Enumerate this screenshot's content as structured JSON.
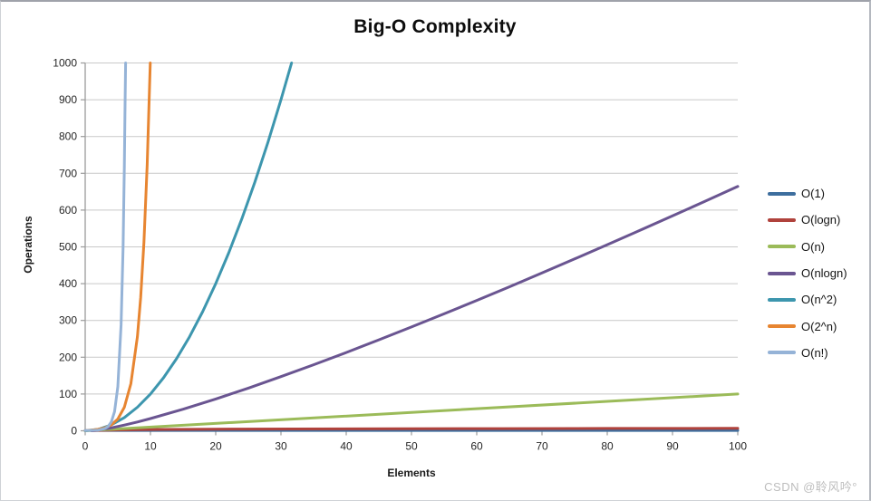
{
  "watermark": "CSDN @聆风吟°",
  "colors": {
    "grid": "#c9c9c9",
    "axis": "#9b9b9b",
    "tick_text": "#262626",
    "title_text": "#0d0d0d",
    "watermark_text": "#bdbdbd"
  },
  "chart_data": {
    "type": "line",
    "title": "Big-O Complexity",
    "xlabel": "Elements",
    "ylabel": "Operations",
    "xlim": [
      0,
      100
    ],
    "ylim": [
      0,
      1000
    ],
    "x_ticks": [
      0,
      10,
      20,
      30,
      40,
      50,
      60,
      70,
      80,
      90,
      100
    ],
    "y_ticks": [
      0,
      100,
      200,
      300,
      400,
      500,
      600,
      700,
      800,
      900,
      1000
    ],
    "grid": "horizontal",
    "legend_position": "right",
    "series": [
      {
        "name": "O(1)",
        "color": "#3d6e9e",
        "points": [
          [
            0,
            1
          ],
          [
            100,
            1
          ]
        ]
      },
      {
        "name": "O(logn)",
        "color": "#b0423c",
        "points": [
          [
            1,
            0
          ],
          [
            2,
            1
          ],
          [
            3,
            1.58
          ],
          [
            4,
            2
          ],
          [
            6,
            2.58
          ],
          [
            8,
            3
          ],
          [
            12,
            3.58
          ],
          [
            16,
            4
          ],
          [
            24,
            4.58
          ],
          [
            32,
            5
          ],
          [
            48,
            5.58
          ],
          [
            64,
            6
          ],
          [
            80,
            6.32
          ],
          [
            100,
            6.64
          ]
        ]
      },
      {
        "name": "O(n)",
        "color": "#9bbb59",
        "points": [
          [
            0,
            0
          ],
          [
            100,
            100
          ]
        ]
      },
      {
        "name": "O(nlogn)",
        "color": "#6a5591",
        "points": [
          [
            1,
            0
          ],
          [
            2,
            2
          ],
          [
            4,
            8
          ],
          [
            6,
            15.5
          ],
          [
            8,
            24
          ],
          [
            10,
            33.2
          ],
          [
            15,
            58.6
          ],
          [
            20,
            86.4
          ],
          [
            25,
            116.1
          ],
          [
            30,
            147.2
          ],
          [
            35,
            179.5
          ],
          [
            40,
            212.9
          ],
          [
            45,
            247.2
          ],
          [
            50,
            282.2
          ],
          [
            55,
            317.9
          ],
          [
            60,
            354.4
          ],
          [
            65,
            391.4
          ],
          [
            70,
            429.1
          ],
          [
            75,
            467.2
          ],
          [
            80,
            505.8
          ],
          [
            85,
            544.8
          ],
          [
            90,
            584.3
          ],
          [
            95,
            624.1
          ],
          [
            100,
            664.4
          ]
        ]
      },
      {
        "name": "O(n^2)",
        "color": "#3d96ae",
        "points": [
          [
            0,
            0
          ],
          [
            2,
            4
          ],
          [
            4,
            16
          ],
          [
            6,
            36
          ],
          [
            8,
            64
          ],
          [
            10,
            100
          ],
          [
            12,
            144
          ],
          [
            14,
            196
          ],
          [
            16,
            256
          ],
          [
            18,
            324
          ],
          [
            20,
            400
          ],
          [
            22,
            484
          ],
          [
            24,
            576
          ],
          [
            26,
            676
          ],
          [
            28,
            784
          ],
          [
            30,
            900
          ],
          [
            31.62,
            1000
          ]
        ]
      },
      {
        "name": "O(2^n)",
        "color": "#e78531",
        "points": [
          [
            0,
            1
          ],
          [
            1,
            2
          ],
          [
            2,
            4
          ],
          [
            3,
            8
          ],
          [
            4,
            16
          ],
          [
            5,
            32
          ],
          [
            6,
            64
          ],
          [
            7,
            128
          ],
          [
            8,
            256
          ],
          [
            8.5,
            362
          ],
          [
            9,
            512
          ],
          [
            9.5,
            724
          ],
          [
            9.97,
            1000
          ]
        ]
      },
      {
        "name": "O(n!)",
        "color": "#95b3d7",
        "points": [
          [
            0,
            1
          ],
          [
            1,
            1
          ],
          [
            2,
            2
          ],
          [
            3,
            6
          ],
          [
            3.5,
            11.6
          ],
          [
            4,
            24
          ],
          [
            4.5,
            52.3
          ],
          [
            5,
            120
          ],
          [
            5.5,
            288
          ],
          [
            5.8,
            497
          ],
          [
            6,
            720
          ],
          [
            6.1,
            869
          ],
          [
            6.19,
            1000
          ]
        ]
      }
    ]
  }
}
